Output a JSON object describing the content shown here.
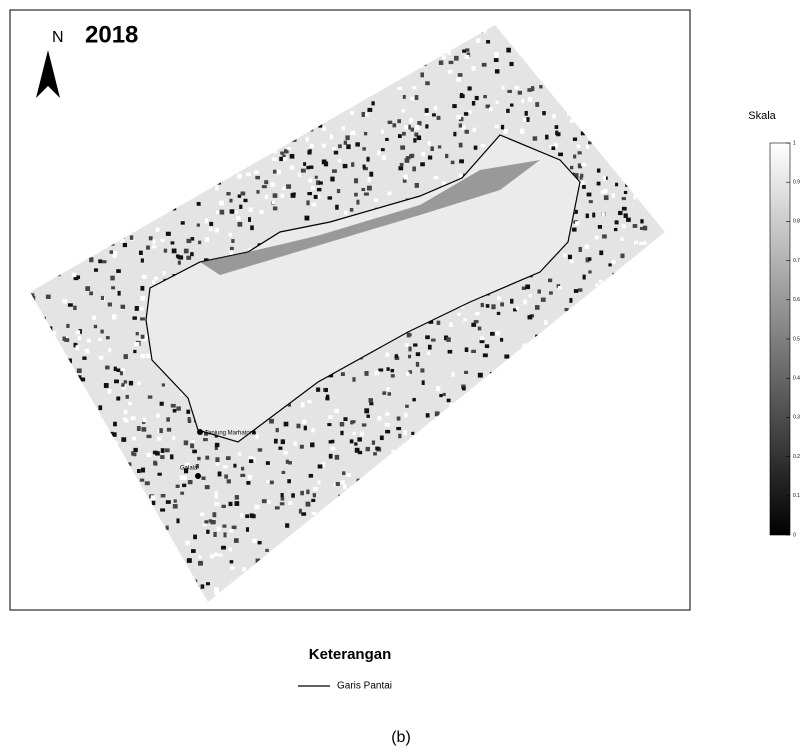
{
  "map": {
    "year": "2018",
    "north": "N",
    "places": [
      "Tanjung Marhatona",
      "Galala"
    ],
    "scale": {
      "title": "Skala",
      "ticks": [
        0,
        0.1,
        0.2,
        0.3,
        0.4,
        0.5,
        0.6,
        0.7,
        0.8,
        0.9,
        1
      ]
    },
    "legend": {
      "title": "Keterangan",
      "items": [
        "Garis Pantai"
      ]
    },
    "caption": "(b)"
  }
}
